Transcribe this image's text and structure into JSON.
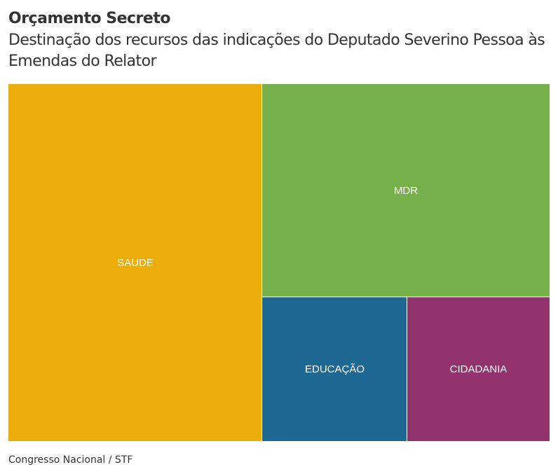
{
  "header": {
    "title": "Orçamento Secreto",
    "subtitle": "Destinação dos recursos das indicações do Deputado Severino Pessoa às Emendas do Relator"
  },
  "source": "Congresso Nacional / STF",
  "chart_data": {
    "type": "treemap",
    "title": "Orçamento Secreto",
    "subtitle": "Destinação dos recursos das indicações do Deputado Severino Pessoa às Emendas do Relator",
    "label_color": "#ffffff",
    "cells": [
      {
        "label": "SAUDE",
        "value": 46.9,
        "color": "#EBAD0A"
      },
      {
        "label": "MDR",
        "value": 31.7,
        "color": "#75B04A"
      },
      {
        "label": "EDUCAÇÃO",
        "value": 10.8,
        "color": "#1E6894"
      },
      {
        "label": "CIDADANIA",
        "value": 10.6,
        "color": "#93336E"
      }
    ]
  }
}
